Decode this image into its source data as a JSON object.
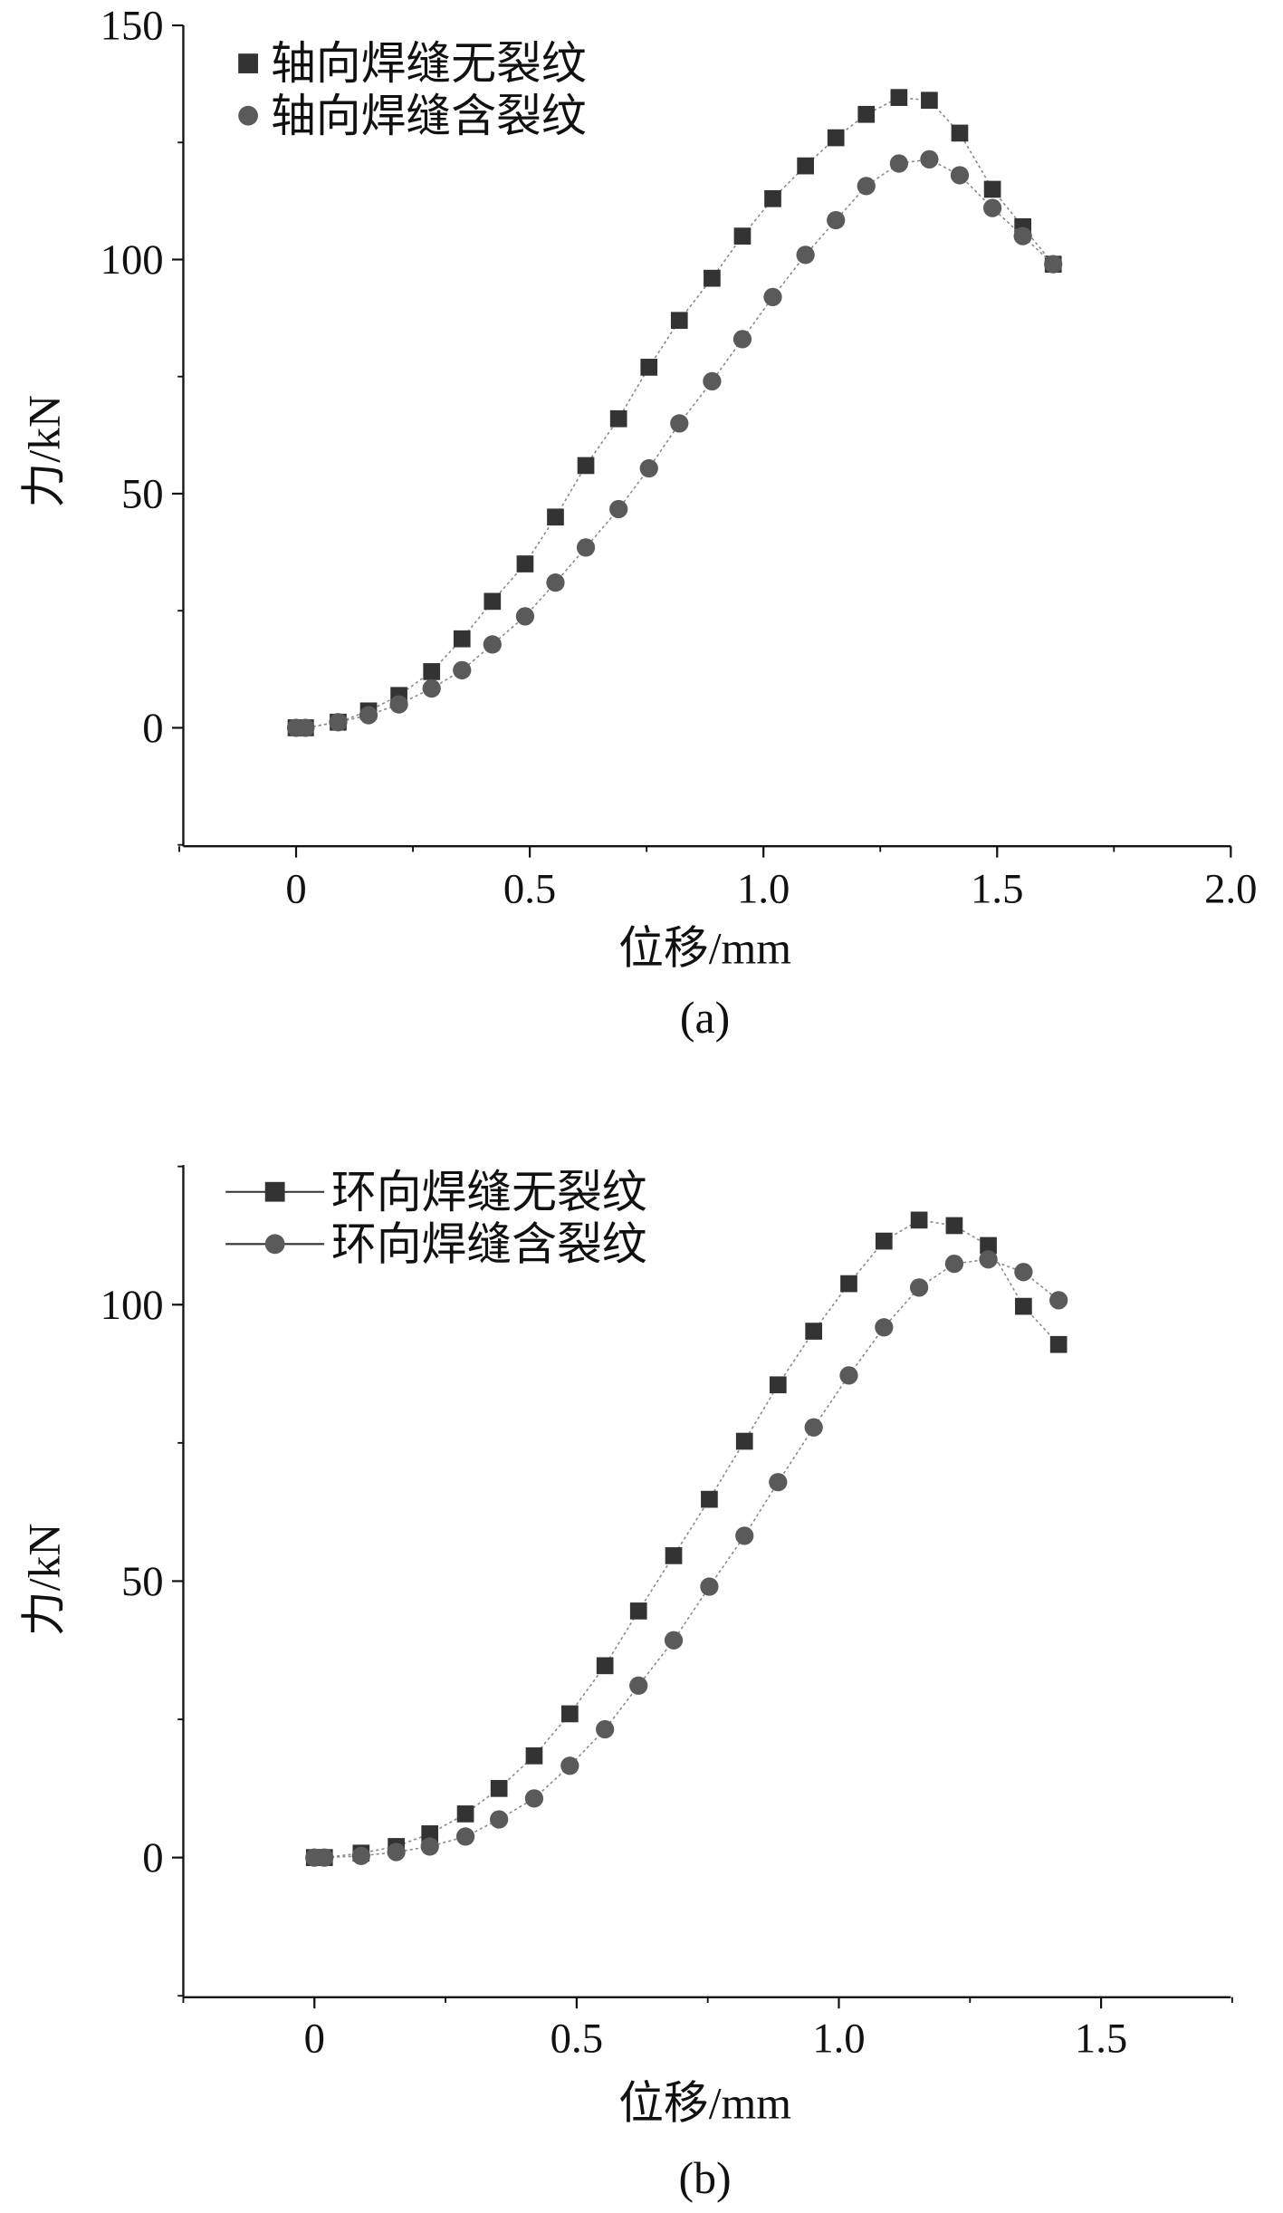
{
  "chart_data": [
    {
      "type": "line",
      "caption": "(a)",
      "xlabel": "位移/mm",
      "ylabel": "力/kN",
      "xlim": [
        -0.25,
        2.0
      ],
      "ylim": [
        -25,
        150
      ],
      "xticks": [
        0,
        0.5,
        1.0,
        1.5,
        2.0
      ],
      "xtick_labels": [
        "0",
        "0.5",
        "1.0",
        "1.5",
        "2.0"
      ],
      "yticks": [
        0,
        50,
        100,
        150
      ],
      "ytick_labels": [
        "0",
        "50",
        "100",
        "150"
      ],
      "grid": false,
      "legend_position": "top-left",
      "series": [
        {
          "name": "轴向焊缝无裂纹",
          "marker": "square",
          "color": "#333333",
          "x": [
            0,
            0.02,
            0.09,
            0.155,
            0.22,
            0.29,
            0.355,
            0.42,
            0.49,
            0.555,
            0.62,
            0.69,
            0.755,
            0.82,
            0.89,
            0.955,
            1.02,
            1.09,
            1.155,
            1.22,
            1.29,
            1.355,
            1.42,
            1.49,
            1.555,
            1.62
          ],
          "y": [
            0,
            0,
            1.2,
            3.6,
            6.9,
            12,
            19,
            27,
            35,
            45,
            56,
            66,
            77,
            87,
            96,
            105,
            113,
            120,
            126,
            131,
            134.6,
            134,
            127,
            115,
            107,
            99
          ]
        },
        {
          "name": "轴向焊缝含裂纹",
          "marker": "circle",
          "color": "#5a5a5a",
          "x": [
            0,
            0.02,
            0.09,
            0.155,
            0.22,
            0.29,
            0.355,
            0.42,
            0.49,
            0.555,
            0.62,
            0.69,
            0.755,
            0.82,
            0.89,
            0.955,
            1.02,
            1.09,
            1.155,
            1.22,
            1.29,
            1.355,
            1.42,
            1.49,
            1.555,
            1.62
          ],
          "y": [
            0,
            0,
            1.2,
            2.7,
            5,
            8.4,
            12.3,
            17.8,
            23.8,
            31,
            38.5,
            46.7,
            55.4,
            65,
            74,
            83,
            92,
            101,
            108.4,
            115.7,
            120.5,
            121.4,
            118,
            111,
            105,
            99
          ]
        }
      ]
    },
    {
      "type": "line",
      "caption": "(b)",
      "xlabel": "位移/mm",
      "ylabel": "力/kN",
      "xlim": [
        -0.25,
        1.75
      ],
      "ylim": [
        -25,
        125
      ],
      "xticks": [
        0,
        0.5,
        1.0,
        1.5
      ],
      "xtick_labels": [
        "0",
        "0.5",
        "1.0",
        "1.5"
      ],
      "yticks": [
        0,
        50,
        100
      ],
      "ytick_labels": [
        "0",
        "50",
        "100"
      ],
      "grid": false,
      "legend_position": "top-left",
      "series": [
        {
          "name": "环向焊缝无裂纹",
          "marker": "square",
          "color": "#333333",
          "x": [
            0,
            0.019,
            0.089,
            0.156,
            0.22,
            0.288,
            0.352,
            0.419,
            0.487,
            0.554,
            0.618,
            0.685,
            0.753,
            0.82,
            0.884,
            0.952,
            1.019,
            1.086,
            1.153,
            1.22,
            1.285,
            1.352,
            1.419
          ],
          "y": [
            0,
            0,
            0.8,
            2,
            4.3,
            7.9,
            12.5,
            18.4,
            26,
            34.7,
            44.6,
            54.6,
            64.8,
            75.3,
            85.5,
            95.2,
            103.8,
            111.5,
            115.3,
            114.3,
            110.7,
            99.7,
            92.8
          ]
        },
        {
          "name": "环向焊缝含裂纹",
          "marker": "circle",
          "color": "#5a5a5a",
          "x": [
            0,
            0.019,
            0.089,
            0.156,
            0.22,
            0.288,
            0.352,
            0.419,
            0.487,
            0.554,
            0.618,
            0.685,
            0.753,
            0.82,
            0.884,
            0.952,
            1.019,
            1.086,
            1.153,
            1.22,
            1.285,
            1.352,
            1.419
          ],
          "y": [
            0,
            0,
            0.3,
            1,
            2,
            3.8,
            6.9,
            10.7,
            16.6,
            23.2,
            31.1,
            39.3,
            49,
            58.2,
            67.9,
            77.8,
            87.2,
            95.9,
            103.1,
            107.4,
            108.2,
            105.9,
            100.8
          ]
        }
      ]
    }
  ]
}
